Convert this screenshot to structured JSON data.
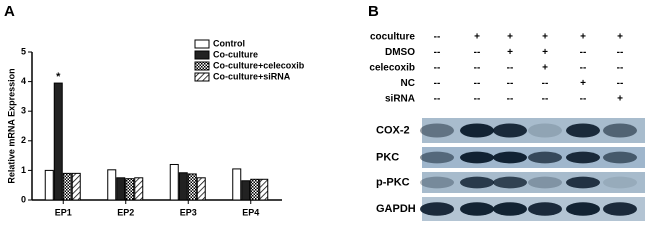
{
  "panel_labels": [
    "A",
    "B"
  ],
  "chart_data": {
    "type": "bar",
    "y_label": "Relative mRNA Expression",
    "categories": [
      "EP1",
      "EP2",
      "EP3",
      "EP4"
    ],
    "series": [
      {
        "name": "Control",
        "color": "#ffffff",
        "values": [
          1.0,
          1.02,
          1.2,
          1.05
        ]
      },
      {
        "name": "Co-culture",
        "color": "#222222",
        "values": [
          3.95,
          0.75,
          0.92,
          0.65
        ]
      },
      {
        "name": "Co-culture+celecoxib",
        "color": "#ffffff",
        "pattern": "checker",
        "values": [
          0.9,
          0.72,
          0.88,
          0.7
        ]
      },
      {
        "name": "Co-culture+siRNA",
        "color": "#ffffff",
        "pattern": "hatch",
        "values": [
          0.9,
          0.75,
          0.75,
          0.7
        ]
      }
    ],
    "annotations": [
      {
        "text": "*",
        "category": 0,
        "series": 1
      }
    ],
    "ylim": [
      0,
      5
    ],
    "yticks": [
      0,
      1,
      2,
      3,
      4,
      5
    ],
    "legend": "upper right"
  },
  "blot": {
    "treatments": [
      {
        "label": "coculture",
        "cells": [
          "--",
          "+",
          "+",
          "+",
          "+",
          "+"
        ]
      },
      {
        "label": "DMSO",
        "cells": [
          "--",
          "--",
          "+",
          "+",
          "--",
          "--"
        ]
      },
      {
        "label": "celecoxib",
        "cells": [
          "--",
          "--",
          "--",
          "+",
          "--",
          "--"
        ]
      },
      {
        "label": "NC",
        "cells": [
          "--",
          "--",
          "--",
          "--",
          "+",
          "--"
        ]
      },
      {
        "label": "siRNA",
        "cells": [
          "--",
          "--",
          "--",
          "--",
          "--",
          "+"
        ]
      }
    ],
    "bands": [
      "COX-2",
      "PKC",
      "p-PKC",
      "GAPDH"
    ]
  }
}
